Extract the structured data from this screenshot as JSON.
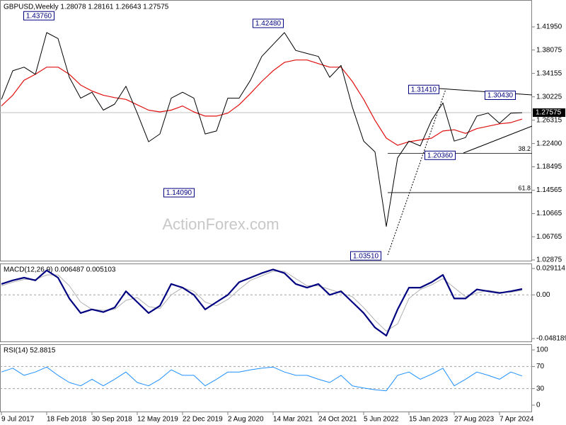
{
  "chart_data": [
    {
      "type": "line",
      "title": "GBPUSD,Weekly  1.28078 1.28161 1.26643 1.27575",
      "watermark": "ActionForex.com",
      "x": [
        "2017-07-09",
        "2017-09-03",
        "2017-10-29",
        "2017-12-24",
        "2018-02-18",
        "2018-04-15",
        "2018-06-10",
        "2018-08-05",
        "2018-09-30",
        "2018-11-25",
        "2019-01-20",
        "2019-03-17",
        "2019-05-12",
        "2019-07-07",
        "2019-09-01",
        "2019-10-27",
        "2019-12-22",
        "2020-02-16",
        "2020-04-12",
        "2020-06-07",
        "2020-08-02",
        "2020-09-27",
        "2020-11-22",
        "2021-01-17",
        "2021-03-14",
        "2021-05-09",
        "2021-07-04",
        "2021-08-29",
        "2021-10-24",
        "2021-12-19",
        "2022-02-13",
        "2022-04-10",
        "2022-06-05",
        "2022-07-31",
        "2022-09-25",
        "2022-11-20",
        "2023-01-15",
        "2023-03-12",
        "2023-05-07",
        "2023-07-02",
        "2023-08-27",
        "2023-10-22",
        "2023-12-17",
        "2024-02-11",
        "2024-04-07",
        "2024-06-02",
        "2024-07-28"
      ],
      "series": [
        {
          "color": "#000000",
          "values": [
            1.298,
            1.346,
            1.352,
            1.34,
            1.41,
            1.4,
            1.335,
            1.3,
            1.31,
            1.28,
            1.29,
            1.32,
            1.275,
            1.227,
            1.24,
            1.3,
            1.31,
            1.3,
            1.24,
            1.245,
            1.3,
            1.3,
            1.33,
            1.37,
            1.39,
            1.41,
            1.38,
            1.375,
            1.37,
            1.335,
            1.355,
            1.285,
            1.228,
            1.21,
            1.085,
            1.2,
            1.228,
            1.22,
            1.263,
            1.292,
            1.228,
            1.234,
            1.27,
            1.275,
            1.258,
            1.275,
            1.2757
          ]
        },
        {
          "color": "#e01010",
          "values": [
            1.287,
            1.305,
            1.33,
            1.34,
            1.352,
            1.352,
            1.34,
            1.322,
            1.312,
            1.305,
            1.301,
            1.298,
            1.289,
            1.28,
            1.277,
            1.28,
            1.287,
            1.277,
            1.27,
            1.27,
            1.275,
            1.289,
            1.308,
            1.328,
            1.346,
            1.36,
            1.364,
            1.364,
            1.358,
            1.352,
            1.352,
            1.328,
            1.298,
            1.263,
            1.233,
            1.221,
            1.227,
            1.23,
            1.233,
            1.245,
            1.247,
            1.241,
            1.249,
            1.253,
            1.257,
            1.259,
            1.265
          ]
        }
      ],
      "xlim": [
        "2017-07-09",
        "2024-09-15"
      ],
      "xticks": [
        {
          "value": "2017-07-09",
          "label": "9 Jul 2017"
        },
        {
          "value": "2018-02-18",
          "label": "18 Feb 2018"
        },
        {
          "value": "2018-09-30",
          "label": "30 Sep 2018"
        },
        {
          "value": "2019-05-12",
          "label": "12 May 2019"
        },
        {
          "value": "2019-12-22",
          "label": "22 Dec 2019"
        },
        {
          "value": "2020-08-02",
          "label": "2 Aug 2020"
        },
        {
          "value": "2021-03-14",
          "label": "14 Mar 2021"
        },
        {
          "value": "2021-10-24",
          "label": "24 Oct 2021"
        },
        {
          "value": "2022-06-05",
          "label": "5 Jun 2022"
        },
        {
          "value": "2023-01-15",
          "label": "15 Jan 2023"
        },
        {
          "value": "2023-08-27",
          "label": "27 Aug 2023"
        },
        {
          "value": "2024-04-07",
          "label": "7 Apr 2024"
        }
      ],
      "ylim": [
        1.0276,
        1.4646
      ],
      "yticks": [
        {
          "value": 1.4195,
          "label": "1.41950"
        },
        1.38075,
        1.34155,
        1.30225,
        1.26315,
        {
          "value": 1.224,
          "label": "1.22400"
        },
        1.18495,
        1.14565,
        1.10665,
        1.06765,
        1.02875
      ],
      "current_price": {
        "value": 1.27575,
        "label": "1.27575"
      },
      "annotations": [
        {
          "value": 1.4376,
          "label": "1.43760"
        },
        {
          "value": 1.4248,
          "label": "1.42480"
        },
        {
          "value": 1.3141,
          "label": "1.31410"
        },
        {
          "value": 1.3043,
          "label": "1.30430"
        },
        {
          "value": 1.2036,
          "label": "1.20360"
        },
        {
          "value": 1.1409,
          "label": "1.14090"
        },
        {
          "value": 1.0351,
          "label": "1.03510"
        }
      ],
      "fib_levels": [
        38.2,
        61.8
      ]
    },
    {
      "type": "line",
      "title": "MACD(12,26,9) 0.006487 0.005103",
      "series": [
        {
          "color": "#000080",
          "values": [
            0.012,
            0.016,
            0.019,
            0.016,
            0.027,
            0.019,
            -0.004,
            -0.02,
            -0.016,
            -0.019,
            -0.014,
            0.004,
            -0.008,
            -0.02,
            -0.012,
            0.012,
            0.008,
            0,
            -0.016,
            -0.008,
            0,
            0.014,
            0.019,
            0.024,
            0.028,
            0.024,
            0.012,
            0.008,
            0.012,
            0,
            0.004,
            -0.008,
            -0.02,
            -0.036,
            -0.045,
            -0.016,
            0.008,
            0.008,
            0.014,
            0.022,
            -0.004,
            -0.004,
            0.006,
            0.004,
            0.002,
            0.004,
            0.006487
          ]
        },
        {
          "color": "#b0b0b0",
          "values": [
            0.01,
            0.014,
            0.017,
            0.017,
            0.022,
            0.022,
            0.01,
            -0.008,
            -0.016,
            -0.017,
            -0.016,
            -0.006,
            -0.003,
            -0.013,
            -0.015,
            0.0,
            0.008,
            0.004,
            -0.008,
            -0.012,
            -0.005,
            0.006,
            0.016,
            0.021,
            0.026,
            0.026,
            0.018,
            0.01,
            0.01,
            0.006,
            0.002,
            -0.002,
            -0.014,
            -0.028,
            -0.04,
            -0.032,
            -0.004,
            0.006,
            0.011,
            0.018,
            0.008,
            -0.002,
            0.002,
            0.005,
            0.003,
            0.003,
            0.005103
          ]
        }
      ],
      "ylim": [
        -0.0521,
        0.0346
      ],
      "yticks": [
        0.029114,
        {
          "value": 0,
          "label": "0.00"
        },
        -0.048189
      ]
    },
    {
      "type": "line",
      "title": "RSI(14) 52.8815",
      "series": [
        {
          "color": "#1e90ff",
          "values": [
            60,
            67,
            54,
            60,
            69,
            54,
            41,
            35,
            47,
            35,
            47,
            60,
            41,
            35,
            47,
            64,
            54,
            54,
            35,
            47,
            60,
            60,
            64,
            67,
            69,
            60,
            54,
            54,
            47,
            41,
            54,
            35,
            31,
            28,
            26,
            54,
            60,
            47,
            56,
            67,
            35,
            47,
            60,
            54,
            47,
            60,
            52.8815
          ]
        }
      ],
      "ylim": [
        -12.8,
        109
      ],
      "yticks": [
        100,
        70,
        30,
        0
      ],
      "level_lines": [
        70,
        30
      ]
    }
  ]
}
